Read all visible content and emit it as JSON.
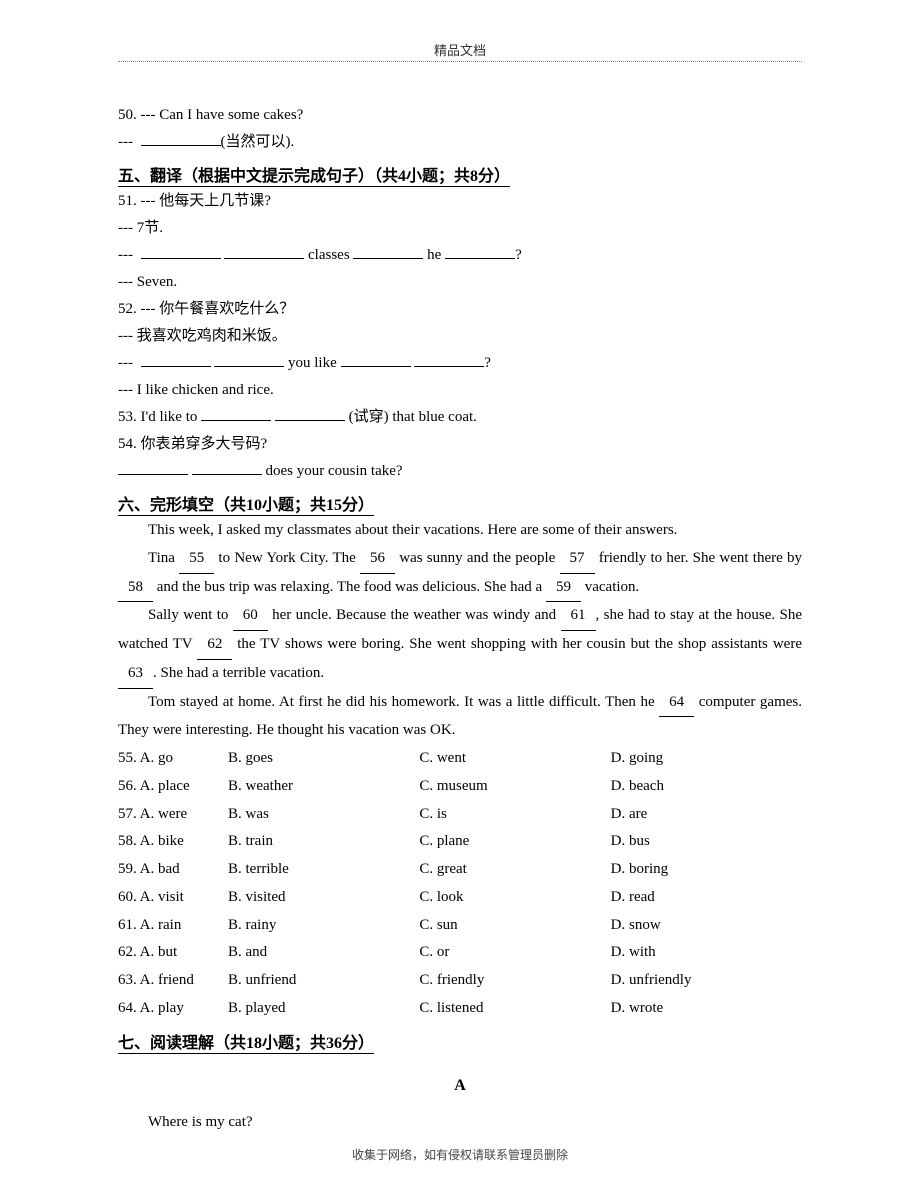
{
  "header": "精品文档",
  "footer": "收集于网络，如有侵权请联系管理员删除",
  "q50": {
    "a": "50. --- Can I have some cakes?",
    "b": "(当然可以)."
  },
  "section5": {
    "title": "五、翻译（根据中文提示完成句子）（共4小题；共8分）"
  },
  "q51": {
    "a": "51. --- 他每天上几节课?",
    "b": "--- 7节.",
    "d": "--- Seven.",
    "w1": "classes",
    "w2": "he"
  },
  "q52": {
    "a": "52. --- 你午餐喜欢吃什么？",
    "b": "--- 我喜欢吃鸡肉和米饭。",
    "d": "--- I like chicken and rice.",
    "w1": "you like"
  },
  "q53": {
    "a": "53. I'd like to",
    "b": "(试穿) that blue coat."
  },
  "q54": {
    "a": "54. 你表弟穿多大号码?",
    "b": "does your cousin take?"
  },
  "section6": {
    "title": "六、完形填空（共10小题；共15分）"
  },
  "cloze": {
    "p1a": "This week, I asked my classmates about their vacations. Here are some of their answers.",
    "p2a": "Tina ",
    "p2b": " to New York City. The ",
    "p2c": " was sunny and the people ",
    "p2d": " friendly to her. She went there by ",
    "p2e": " and the bus trip was relaxing. The food was delicious. She had a ",
    "p2f": " vacation.",
    "p3a": "Sally went to ",
    "p3b": " her uncle. Because the weather was windy and ",
    "p3c": ", she had to stay at the house. She watched TV ",
    "p3d": " the TV shows were boring. She went shopping with her cousin but the shop assistants were ",
    "p3e": ". She had a terrible vacation.",
    "p4a": "Tom stayed at home. At first he did his homework. It was a little difficult. Then he ",
    "p4b": " computer games. They were interesting. He thought his vacation was OK.",
    "n55": "55",
    "n56": "56",
    "n57": "57",
    "n58": "58",
    "n59": "59",
    "n60": "60",
    "n61": "61",
    "n62": "62",
    "n63": "63",
    "n64": "64"
  },
  "mc": [
    {
      "n": "55.",
      "a": "A. go",
      "b": "B. goes",
      "c": "C. went",
      "d": "D. going"
    },
    {
      "n": "56.",
      "a": "A. place",
      "b": "B. weather",
      "c": "C. museum",
      "d": "D. beach"
    },
    {
      "n": "57.",
      "a": "A. were",
      "b": "B. was",
      "c": "C. is",
      "d": "D. are"
    },
    {
      "n": "58.",
      "a": "A. bike",
      "b": "B. train",
      "c": "C. plane",
      "d": "D. bus"
    },
    {
      "n": "59.",
      "a": "A. bad",
      "b": "B. terrible",
      "c": "C. great",
      "d": "D. boring"
    },
    {
      "n": "60.",
      "a": "A. visit",
      "b": "B. visited",
      "c": "C. look",
      "d": "D. read"
    },
    {
      "n": "61.",
      "a": "A. rain",
      "b": "B. rainy",
      "c": "C. sun",
      "d": "D. snow"
    },
    {
      "n": "62.",
      "a": "A. but",
      "b": "B. and",
      "c": "C. or",
      "d": "D. with"
    },
    {
      "n": "63.",
      "a": "A. friend",
      "b": "B. unfriend",
      "c": "C. friendly",
      "d": "D. unfriendly"
    },
    {
      "n": "64.",
      "a": "A. play",
      "b": "B. played",
      "c": "C. listened",
      "d": "D. wrote"
    }
  ],
  "section7": {
    "title": "七、阅读理解（共18小题；共36分）",
    "passage": "A",
    "p1": "Where is my cat?"
  }
}
